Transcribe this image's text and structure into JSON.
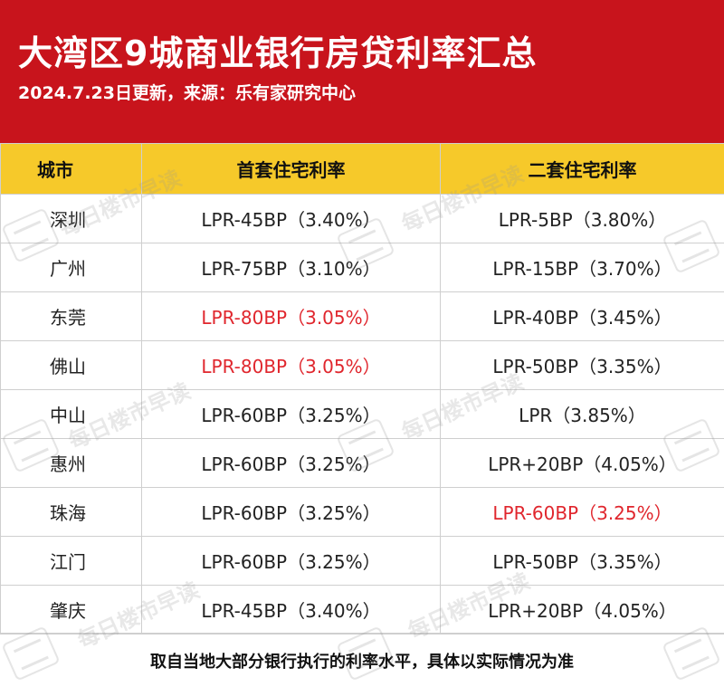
{
  "header": {
    "title": "大湾区9城商业银行房贷利率汇总",
    "subtitle": "2024.7.23日更新，来源：乐有家研究中心"
  },
  "table": {
    "columns": [
      "城市",
      "首套住宅利率",
      "二套住宅利率"
    ],
    "rows": [
      {
        "city": "深圳",
        "first": "LPR-45BP（3.40%）",
        "second": "LPR-5BP（3.80%）"
      },
      {
        "city": "广州",
        "first": "LPR-75BP（3.10%）",
        "second": "LPR-15BP（3.70%）"
      },
      {
        "city": "东莞",
        "first": "LPR-80BP（3.05%）",
        "second": "LPR-40BP（3.45%）"
      },
      {
        "city": "佛山",
        "first": "LPR-80BP（3.05%）",
        "second": "LPR-50BP（3.35%）"
      },
      {
        "city": "中山",
        "first": "LPR-60BP（3.25%）",
        "second": "LPR（3.85%）"
      },
      {
        "city": "惠州",
        "first": "LPR-60BP（3.25%）",
        "second": "LPR+20BP（4.05%）"
      },
      {
        "city": "珠海",
        "first": "LPR-60BP（3.25%）",
        "second": "LPR-60BP（3.25%）"
      },
      {
        "city": "江门",
        "first": "LPR-60BP（3.25%）",
        "second": "LPR-50BP（3.35%）"
      },
      {
        "city": "肇庆",
        "first": "LPR-45BP（3.40%）",
        "second": "LPR+20BP（4.05%）"
      }
    ]
  },
  "footer": {
    "note": "取自当地大部分银行执行的利率水平，具体以实际情况为准"
  },
  "watermark": {
    "text": "每日楼市早读"
  },
  "colors": {
    "header_bg": "#c8141c",
    "table_header_bg": "#f6c92a",
    "highlight_red": "#e0262d"
  }
}
